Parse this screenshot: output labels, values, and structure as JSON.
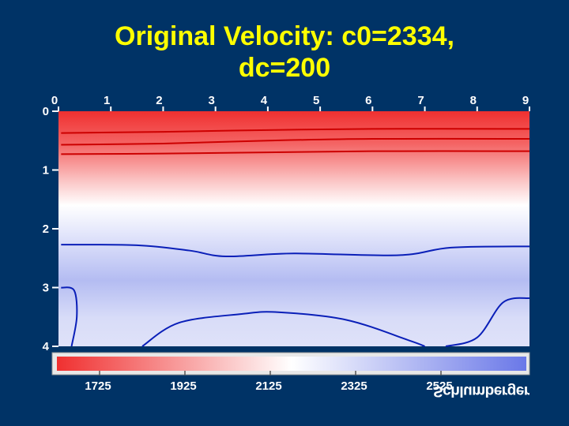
{
  "chart_data": {
    "type": "heatmap",
    "title": "Original Velocity:  c0=2334, dc=200",
    "title_lines": [
      "Original Velocity:  c0=2334,",
      "dc=200"
    ],
    "x_ticks": [
      "0",
      "1",
      "2",
      "3",
      "4",
      "5",
      "6",
      "7",
      "8",
      "9"
    ],
    "y_ticks": [
      "0",
      "1",
      "2",
      "3",
      "4"
    ],
    "xlim": [
      0,
      9
    ],
    "ylim": [
      0,
      4
    ],
    "colorbar": {
      "min": 1625,
      "max": 2725,
      "ticks": [
        "1725",
        "1925",
        "2125",
        "2325",
        "2525"
      ],
      "colors": [
        "#f03030",
        "#ffffff",
        "#6a78e8"
      ]
    },
    "contour_colors": {
      "low": "#cc0000",
      "high": "#0a1fb8"
    },
    "contours": [
      {
        "level": "low",
        "points": [
          [
            0.05,
            0.37
          ],
          [
            2.0,
            0.35
          ],
          [
            4.0,
            0.32
          ],
          [
            6.0,
            0.3
          ],
          [
            9.0,
            0.3
          ]
        ]
      },
      {
        "level": "low",
        "points": [
          [
            0.05,
            0.57
          ],
          [
            2.0,
            0.55
          ],
          [
            4.0,
            0.5
          ],
          [
            6.0,
            0.47
          ],
          [
            9.0,
            0.47
          ]
        ]
      },
      {
        "level": "low",
        "points": [
          [
            0.05,
            0.73
          ],
          [
            2.0,
            0.72
          ],
          [
            4.0,
            0.7
          ],
          [
            6.0,
            0.68
          ],
          [
            9.0,
            0.68
          ]
        ]
      },
      {
        "level": "high",
        "points": [
          [
            0.05,
            2.27
          ],
          [
            1.5,
            2.28
          ],
          [
            2.5,
            2.37
          ],
          [
            3.2,
            2.47
          ],
          [
            4.5,
            2.42
          ],
          [
            6.5,
            2.45
          ],
          [
            7.5,
            2.32
          ],
          [
            9.0,
            2.3
          ]
        ]
      },
      {
        "level": "high",
        "points": [
          [
            0.05,
            3.0
          ],
          [
            0.3,
            3.05
          ],
          [
            0.35,
            3.5
          ],
          [
            0.25,
            4.0
          ]
        ]
      },
      {
        "level": "high",
        "points": [
          [
            1.6,
            4.0
          ],
          [
            2.3,
            3.6
          ],
          [
            3.5,
            3.45
          ],
          [
            4.2,
            3.42
          ],
          [
            5.5,
            3.55
          ],
          [
            6.7,
            3.9
          ],
          [
            7.0,
            4.0
          ]
        ]
      },
      {
        "level": "high",
        "points": [
          [
            7.4,
            4.0
          ],
          [
            8.0,
            3.85
          ],
          [
            8.5,
            3.25
          ],
          [
            9.0,
            3.18
          ]
        ]
      }
    ]
  },
  "logo": {
    "text": "Schlumberger"
  }
}
